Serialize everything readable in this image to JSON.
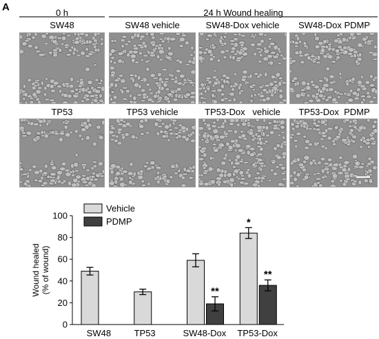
{
  "figure": {
    "panel_letter": "A",
    "group_headers": [
      "0 h",
      "24 h Wound healing"
    ],
    "panels": [
      {
        "label": "SW48",
        "wound": "open"
      },
      {
        "label": "SW48 vehicle",
        "wound": "partly-closed"
      },
      {
        "label": "SW48-Dox vehicle",
        "wound": "partly-closed"
      },
      {
        "label": "SW48-Dox PDMP",
        "wound": "partly-closed"
      },
      {
        "label": "TP53",
        "wound": "open"
      },
      {
        "label": "TP53 vehicle",
        "wound": "open"
      },
      {
        "label": "TP53-Dox   vehicle",
        "wound": "closed"
      },
      {
        "label": "TP53-Dox  PDMP",
        "wound": "partly-closed"
      }
    ],
    "colors": {
      "micrograph_bg": "#8f8f8f",
      "cell_fill": "#c4c4c4",
      "cell_edge": "#5a5a5a",
      "scale_bar": "#ffffff"
    }
  },
  "chart_data": {
    "type": "bar",
    "categories": [
      "SW48",
      "TP53",
      "SW48-Dox",
      "TP53-Dox"
    ],
    "series": [
      {
        "name": "Vehicle",
        "color": "#d9d9d9",
        "values": [
          49,
          30,
          59,
          84
        ],
        "errors": [
          3.5,
          2.5,
          6,
          5
        ],
        "annotations": [
          "",
          "",
          "",
          "*"
        ]
      },
      {
        "name": "PDMP",
        "color": "#404040",
        "values": [
          null,
          null,
          19,
          36
        ],
        "errors": [
          null,
          null,
          6.5,
          5
        ],
        "annotations": [
          "",
          "",
          "**",
          "**"
        ]
      }
    ],
    "ylabel_lines": [
      "Wound healed",
      "(% of wound)"
    ],
    "ylim": [
      0,
      100
    ],
    "yticks": [
      "0",
      "20",
      "40",
      "60",
      "80",
      "100"
    ],
    "legend_position": "top-left",
    "grid": false
  }
}
